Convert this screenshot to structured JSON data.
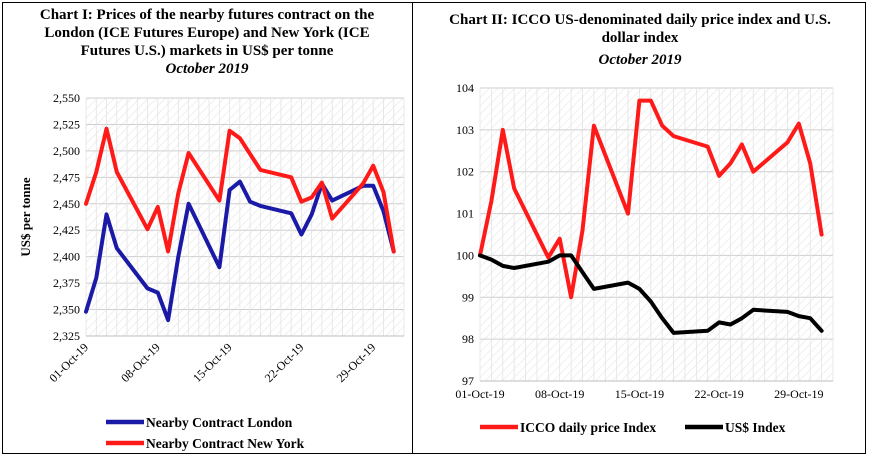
{
  "chart_data": [
    {
      "type": "line",
      "title": "Chart I: Prices of the nearby futures contract on the London (ICE Futures Europe) and New York (ICE Futures U.S.) markets in US$ per tonne",
      "title_lines": [
        "Chart I: Prices of the nearby futures contract on the",
        "London (ICE Futures Europe) and New York (ICE",
        "Futures U.S.) markets in US$ per tonne"
      ],
      "subtitle": "October 2019",
      "ylabel": "US$ per tonne",
      "xlabel": "",
      "ylim": [
        2325,
        2550
      ],
      "yticks": [
        2325,
        2350,
        2375,
        2400,
        2425,
        2450,
        2475,
        2500,
        2525,
        2550
      ],
      "ytick_labels": [
        "2,325",
        "2,350",
        "2,375",
        "2,400",
        "2,425",
        "2,450",
        "2,475",
        "2,500",
        "2,525",
        "2,550"
      ],
      "xlim": [
        0,
        31
      ],
      "xticks": [
        {
          "x": 0,
          "label": "01-Oct-19"
        },
        {
          "x": 7,
          "label": "08-Oct-19"
        },
        {
          "x": 14,
          "label": "15-Oct-19"
        },
        {
          "x": 21,
          "label": "22-Oct-19"
        },
        {
          "x": 28,
          "label": "29-Oct-19"
        }
      ],
      "grid": true,
      "legend_position": "bottom",
      "series": [
        {
          "name": "Nearby Contract London",
          "color": "#1a1aa6",
          "x": [
            0,
            1,
            2,
            3,
            6,
            7,
            8,
            9,
            10,
            13,
            14,
            15,
            16,
            17,
            20,
            21,
            22,
            23,
            24,
            27,
            28,
            29,
            30
          ],
          "y": [
            2348,
            2380,
            2440,
            2408,
            2370,
            2366,
            2340,
            2400,
            2450,
            2390,
            2463,
            2471,
            2452,
            2448,
            2441,
            2421,
            2440,
            2469,
            2453,
            2467,
            2467,
            2443,
            2405
          ]
        },
        {
          "name": "Nearby Contract New York",
          "color": "#ff1a1a",
          "x": [
            0,
            1,
            2,
            3,
            6,
            7,
            8,
            9,
            10,
            13,
            14,
            15,
            16,
            17,
            20,
            21,
            22,
            23,
            24,
            27,
            28,
            29,
            30
          ],
          "y": [
            2450,
            2480,
            2521,
            2480,
            2426,
            2447,
            2405,
            2460,
            2498,
            2453,
            2519,
            2512,
            2497,
            2482,
            2475,
            2452,
            2456,
            2470,
            2436,
            2469,
            2486,
            2461,
            2405
          ]
        }
      ]
    },
    {
      "type": "line",
      "title": "Chart II: ICCO US-denominated daily price index and U.S. dollar index",
      "title_lines": [
        "Chart II: ICCO US-denominated daily price index and U.S.",
        "dollar index"
      ],
      "subtitle": "October 2019",
      "xlabel": "",
      "ylabel": "",
      "ylim": [
        97,
        104
      ],
      "yticks": [
        97,
        98,
        99,
        100,
        101,
        102,
        103,
        104
      ],
      "ytick_labels": [
        "97",
        "98",
        "99",
        "100",
        "101",
        "102",
        "103",
        "104"
      ],
      "xlim": [
        0,
        31
      ],
      "xticks": [
        {
          "x": 0,
          "label": "01-Oct-19"
        },
        {
          "x": 7,
          "label": "08-Oct-19"
        },
        {
          "x": 14,
          "label": "15-Oct-19"
        },
        {
          "x": 21,
          "label": "22-Oct-19"
        },
        {
          "x": 28,
          "label": "29-Oct-19"
        }
      ],
      "grid": true,
      "legend_position": "bottom",
      "series": [
        {
          "name": "ICCO daily price Index",
          "color": "#ff1a1a",
          "x": [
            0,
            1,
            2,
            3,
            6,
            7,
            8,
            9,
            10,
            13,
            14,
            15,
            16,
            17,
            20,
            21,
            22,
            23,
            24,
            27,
            28,
            29,
            30
          ],
          "y": [
            100.0,
            101.3,
            103.0,
            101.6,
            99.95,
            100.4,
            99.0,
            100.6,
            103.1,
            101.0,
            103.7,
            103.7,
            103.1,
            102.85,
            102.6,
            101.9,
            102.2,
            102.65,
            102.0,
            102.7,
            103.15,
            102.2,
            100.5
          ]
        },
        {
          "name": "US$ Index",
          "color": "#000000",
          "x": [
            0,
            1,
            2,
            3,
            6,
            7,
            8,
            9,
            10,
            13,
            14,
            15,
            16,
            17,
            20,
            21,
            22,
            23,
            24,
            27,
            28,
            29,
            30
          ],
          "y": [
            100.0,
            99.9,
            99.75,
            99.7,
            99.85,
            100.0,
            100.0,
            99.6,
            99.2,
            99.35,
            99.2,
            98.9,
            98.5,
            98.15,
            98.2,
            98.4,
            98.35,
            98.5,
            98.7,
            98.65,
            98.55,
            98.5,
            98.2
          ]
        }
      ]
    }
  ]
}
